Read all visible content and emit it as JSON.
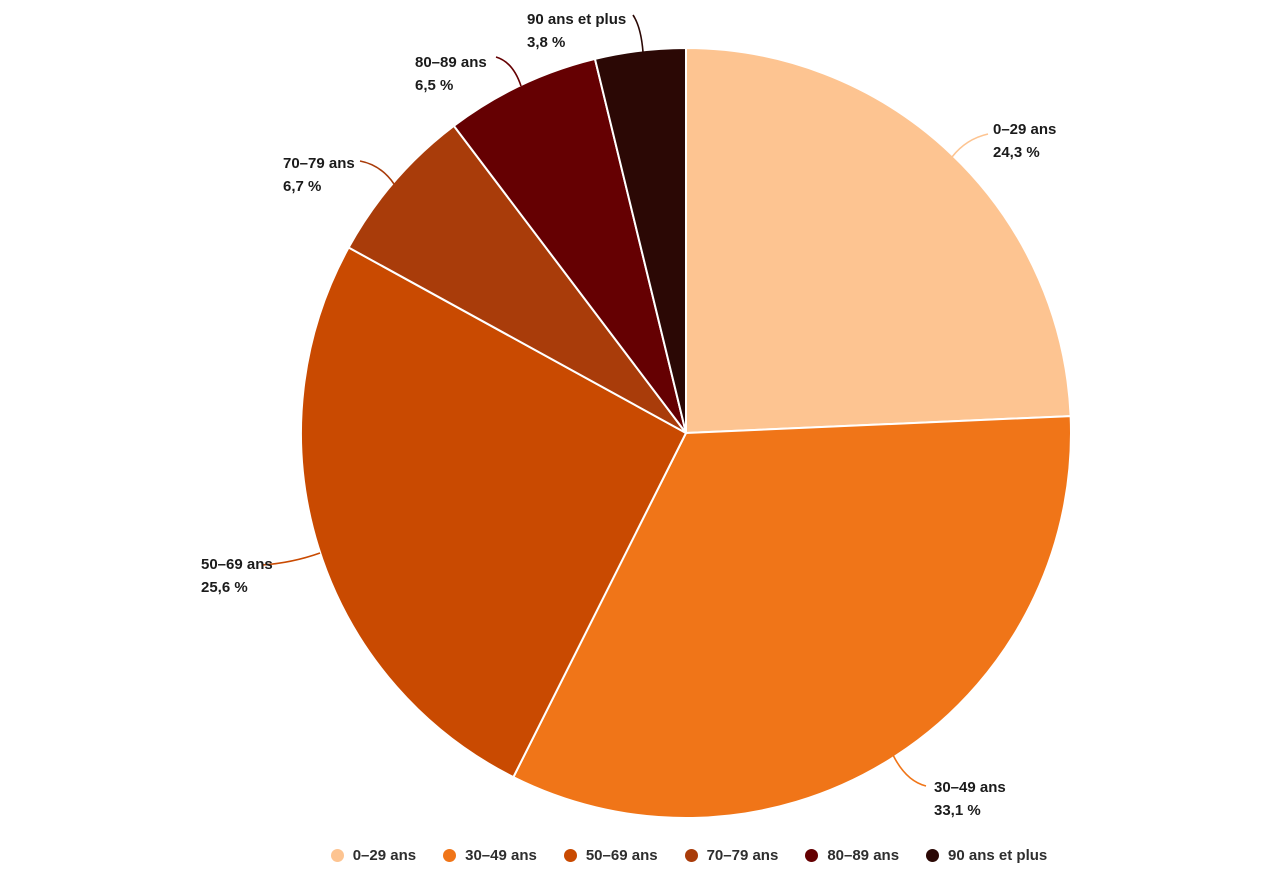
{
  "chart_data": {
    "type": "pie",
    "title": "",
    "unit": "%",
    "decimal_style": "french-comma",
    "legend_position": "bottom",
    "categories": [
      "0–29 ans",
      "30–49 ans",
      "50–69 ans",
      "70–79 ans",
      "80–89 ans",
      "90 ans et plus"
    ],
    "values": [
      24.3,
      33.1,
      25.6,
      6.7,
      6.5,
      3.8
    ],
    "slices": [
      {
        "name": "0–29 ans",
        "value": 24.3,
        "pct_label": "24,3 %",
        "color": "#FDC491"
      },
      {
        "name": "30–49 ans",
        "value": 33.1,
        "pct_label": "33,1 %",
        "color": "#F07518"
      },
      {
        "name": "50–69 ans",
        "value": 25.6,
        "pct_label": "25,6 %",
        "color": "#C94A01"
      },
      {
        "name": "70–79 ans",
        "value": 6.7,
        "pct_label": "6,7 %",
        "color": "#A93C0A"
      },
      {
        "name": "80–89 ans",
        "value": 6.5,
        "pct_label": "6,5 %",
        "color": "#650002"
      },
      {
        "name": "90 ans et plus",
        "value": 3.8,
        "pct_label": "3,8 %",
        "color": "#2B0805"
      }
    ]
  }
}
